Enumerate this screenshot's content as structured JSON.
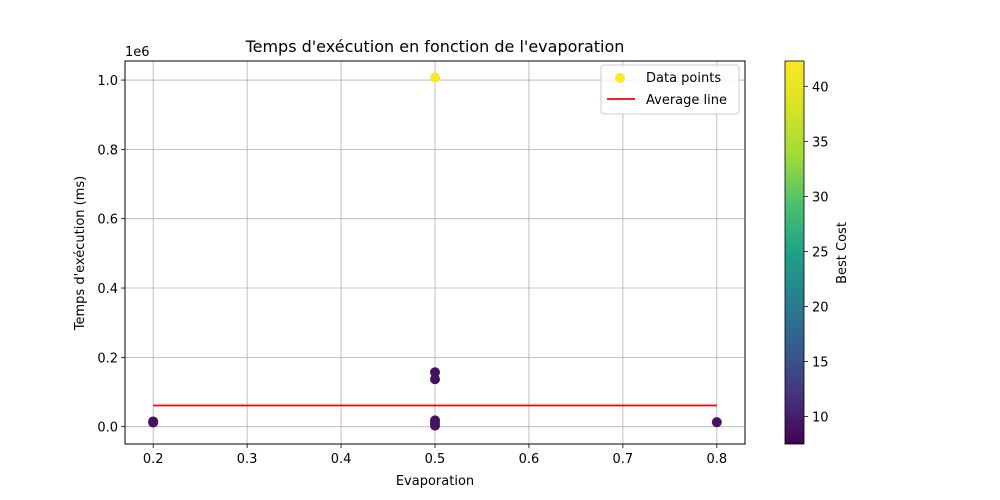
{
  "chart_data": {
    "type": "scatter",
    "title": "Temps d'exécution en fonction de l'evaporation",
    "xlabel": "Evaporation",
    "ylabel": "Temps d'exécution (ms)",
    "y_offset_label": "1e6",
    "xlim": [
      0.17,
      0.83
    ],
    "ylim": [
      -0.05,
      1.055
    ],
    "x_ticks": [
      0.2,
      0.3,
      0.4,
      0.5,
      0.6,
      0.7,
      0.8
    ],
    "x_tick_labels": [
      "0.2",
      "0.3",
      "0.4",
      "0.5",
      "0.6",
      "0.7",
      "0.8"
    ],
    "y_ticks": [
      0.0,
      0.2,
      0.4,
      0.6,
      0.8,
      1.0
    ],
    "y_tick_labels": [
      "0.0",
      "0.2",
      "0.4",
      "0.6",
      "0.8",
      "1.0"
    ],
    "grid": true,
    "legend_position": "top-right",
    "legend": [
      {
        "label": "Data points",
        "kind": "marker"
      },
      {
        "label": "Average line",
        "kind": "line"
      }
    ],
    "colormap": "viridis",
    "colorbar": {
      "label": "Best Cost",
      "range": [
        7.5,
        42.3
      ],
      "ticks": [
        10,
        15,
        20,
        25,
        30,
        35,
        40
      ],
      "tick_labels": [
        "10",
        "15",
        "20",
        "25",
        "30",
        "35",
        "40"
      ]
    },
    "points": [
      {
        "x": 0.2,
        "y": 0.015,
        "cost": 9
      },
      {
        "x": 0.2,
        "y": 0.012,
        "cost": 9
      },
      {
        "x": 0.5,
        "y": 1.007,
        "cost": 42
      },
      {
        "x": 0.5,
        "y": 0.157,
        "cost": 9
      },
      {
        "x": 0.5,
        "y": 0.137,
        "cost": 9
      },
      {
        "x": 0.5,
        "y": 0.018,
        "cost": 9
      },
      {
        "x": 0.5,
        "y": 0.01,
        "cost": 9
      },
      {
        "x": 0.5,
        "y": 0.003,
        "cost": 9
      },
      {
        "x": 0.8,
        "y": 0.013,
        "cost": 9
      }
    ],
    "average_line": {
      "x": [
        0.2,
        0.8
      ],
      "y": [
        0.061,
        0.061
      ],
      "color": "#ff0000"
    }
  }
}
